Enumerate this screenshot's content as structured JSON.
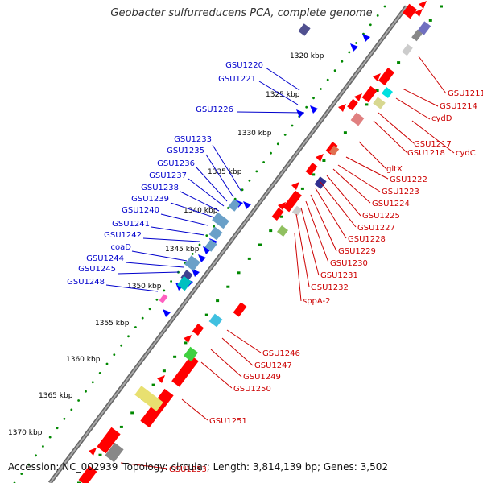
{
  "title": "Geobacter sulfurreducens PCA, complete genome",
  "footer": {
    "accession": "Accession: NC_002939",
    "topology": "Topology: circular; Length: 3,814,139 bp; Genes: 3,502"
  },
  "colors": {
    "forward_gene": "#ff0000",
    "reverse_gene": "#0000ff",
    "forward_label": "#cc0000",
    "reverse_label": "#0000cc",
    "backbone": "#808080",
    "ruler": "#008800"
  },
  "scale_ticks": [
    {
      "label": "1320 kbp",
      "kbp": 1320
    },
    {
      "label": "1325 kbp",
      "kbp": 1325
    },
    {
      "label": "1330 kbp",
      "kbp": 1330
    },
    {
      "label": "1335 kbp",
      "kbp": 1335
    },
    {
      "label": "1340 kbp",
      "kbp": 1340
    },
    {
      "label": "1345 kbp",
      "kbp": 1345
    },
    {
      "label": "1350 kbp",
      "kbp": 1350
    },
    {
      "label": "1355 kbp",
      "kbp": 1355
    },
    {
      "label": "1360 kbp",
      "kbp": 1360
    },
    {
      "label": "1365 kbp",
      "kbp": 1365
    },
    {
      "label": "1370 kbp",
      "kbp": 1370
    }
  ],
  "reverse_labels": [
    "GSU1220",
    "GSU1221",
    "GSU1226",
    "GSU1233",
    "GSU1235",
    "GSU1236",
    "GSU1237",
    "GSU1238",
    "GSU1239",
    "GSU1240",
    "GSU1241",
    "GSU1242",
    "coaD",
    "GSU1244",
    "GSU1245",
    "GSU1248"
  ],
  "forward_labels": [
    "GSU1211",
    "GSU1214",
    "cydD",
    "GSU1217",
    "GSU1218",
    "cydC",
    "gltX",
    "GSU1222",
    "GSU1223",
    "GSU1224",
    "GSU1225",
    "GSU1227",
    "GSU1228",
    "GSU1229",
    "GSU1230",
    "GSU1231",
    "GSU1232",
    "sppA-2",
    "GSU1246",
    "GSU1247",
    "GSU1249",
    "GSU1250",
    "GSU1251",
    "GSU1253"
  ]
}
